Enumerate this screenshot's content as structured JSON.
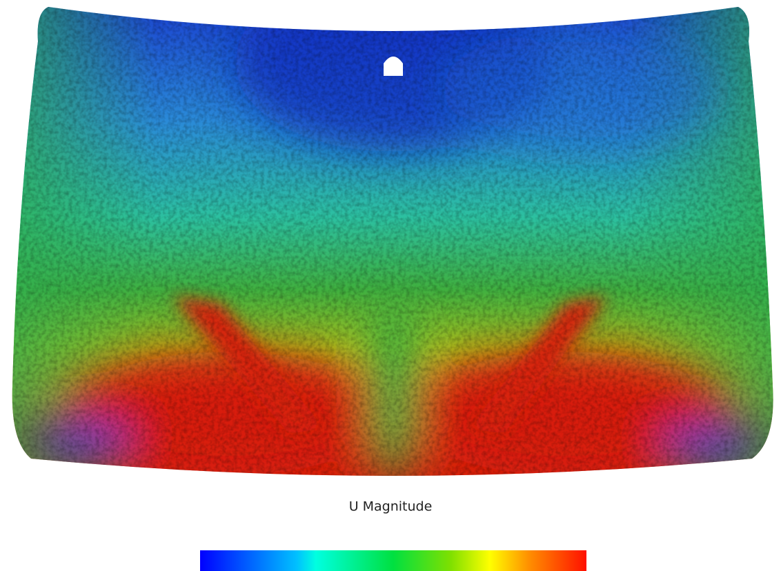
{
  "colorbar": {
    "title": "U Magnitude"
  }
}
